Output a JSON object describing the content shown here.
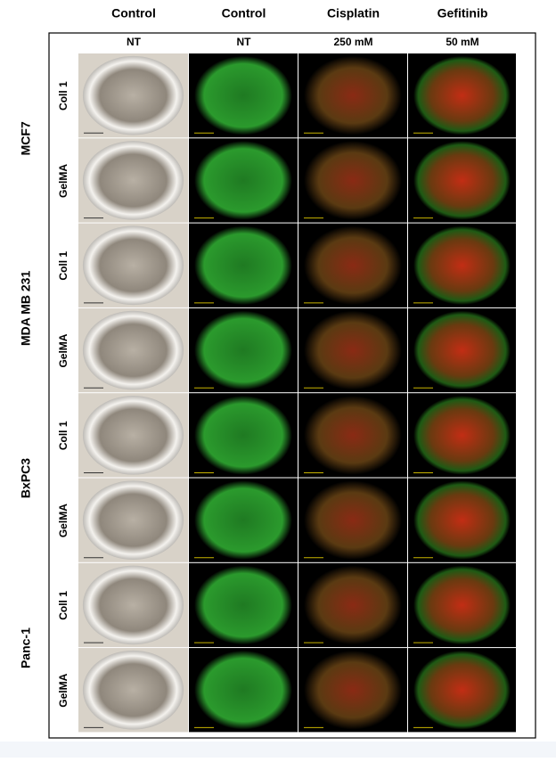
{
  "figure": {
    "columns": [
      {
        "treatment": "Control",
        "dose": "NT"
      },
      {
        "treatment": "Control",
        "dose": "NT"
      },
      {
        "treatment": "Cisplatin",
        "dose": "250 mM"
      },
      {
        "treatment": "Gefitinib",
        "dose": "50 mM"
      }
    ],
    "groups": [
      {
        "cell_line": "MCF7",
        "rows": [
          "Coll 1",
          "GelMA"
        ]
      },
      {
        "cell_line": "MDA MB 231",
        "rows": [
          "Coll 1",
          "GelMA"
        ]
      },
      {
        "cell_line": "BxPC3",
        "rows": [
          "Coll 1",
          "GelMA"
        ]
      },
      {
        "cell_line": "Panc-1",
        "rows": [
          "Coll 1",
          "GelMA"
        ]
      }
    ]
  }
}
